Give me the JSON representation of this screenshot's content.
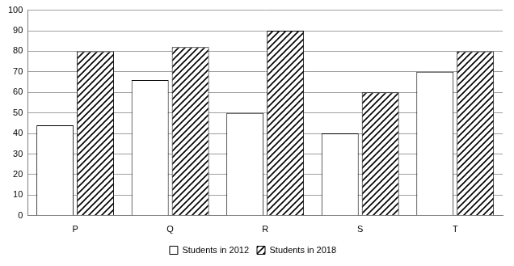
{
  "chart_data": {
    "type": "bar",
    "categories": [
      "P",
      "Q",
      "R",
      "S",
      "T"
    ],
    "series": [
      {
        "name": "Students in 2012",
        "color": "#ffffff",
        "values": [
          44,
          66,
          50,
          40,
          70
        ]
      },
      {
        "name": "Students in 2018",
        "color": "#000000",
        "values": [
          80,
          82,
          90,
          60,
          80
        ]
      }
    ],
    "ylim": [
      0,
      100
    ],
    "yticks": [
      0,
      10,
      20,
      30,
      40,
      50,
      60,
      70,
      80,
      90,
      100
    ],
    "grid": true,
    "legend": "bottom"
  }
}
